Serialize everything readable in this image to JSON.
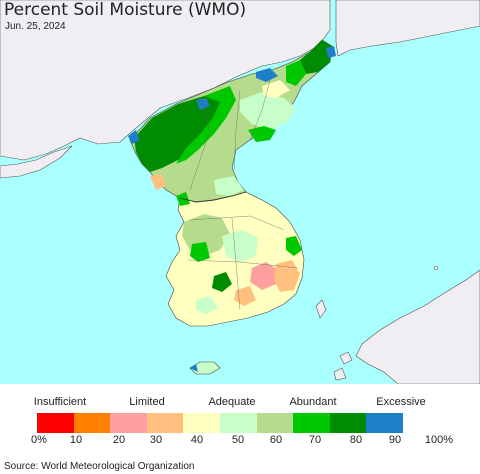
{
  "title": "Percent Soil Moisture (WMO)",
  "date": "Jun. 25, 2024",
  "legend": {
    "categories": [
      "Insufficient",
      "Limited",
      "Adequate",
      "Abundant",
      "Excessive"
    ],
    "ticks": [
      "0%",
      "10",
      "20",
      "30",
      "40",
      "50",
      "60",
      "70",
      "80",
      "90",
      "100%"
    ],
    "colors": [
      "#ff0000",
      "#ff8000",
      "#ffa0a0",
      "#ffc080",
      "#ffffc0",
      "#c8ffc8",
      "#b4dc8c",
      "#00c800",
      "#008c00",
      "#1e7ec8"
    ]
  },
  "source": "Source: World Meteorological Organization",
  "map_colors": {
    "sea": "#aaffff",
    "land_outside": "#f0eef2",
    "border": "#333333"
  }
}
